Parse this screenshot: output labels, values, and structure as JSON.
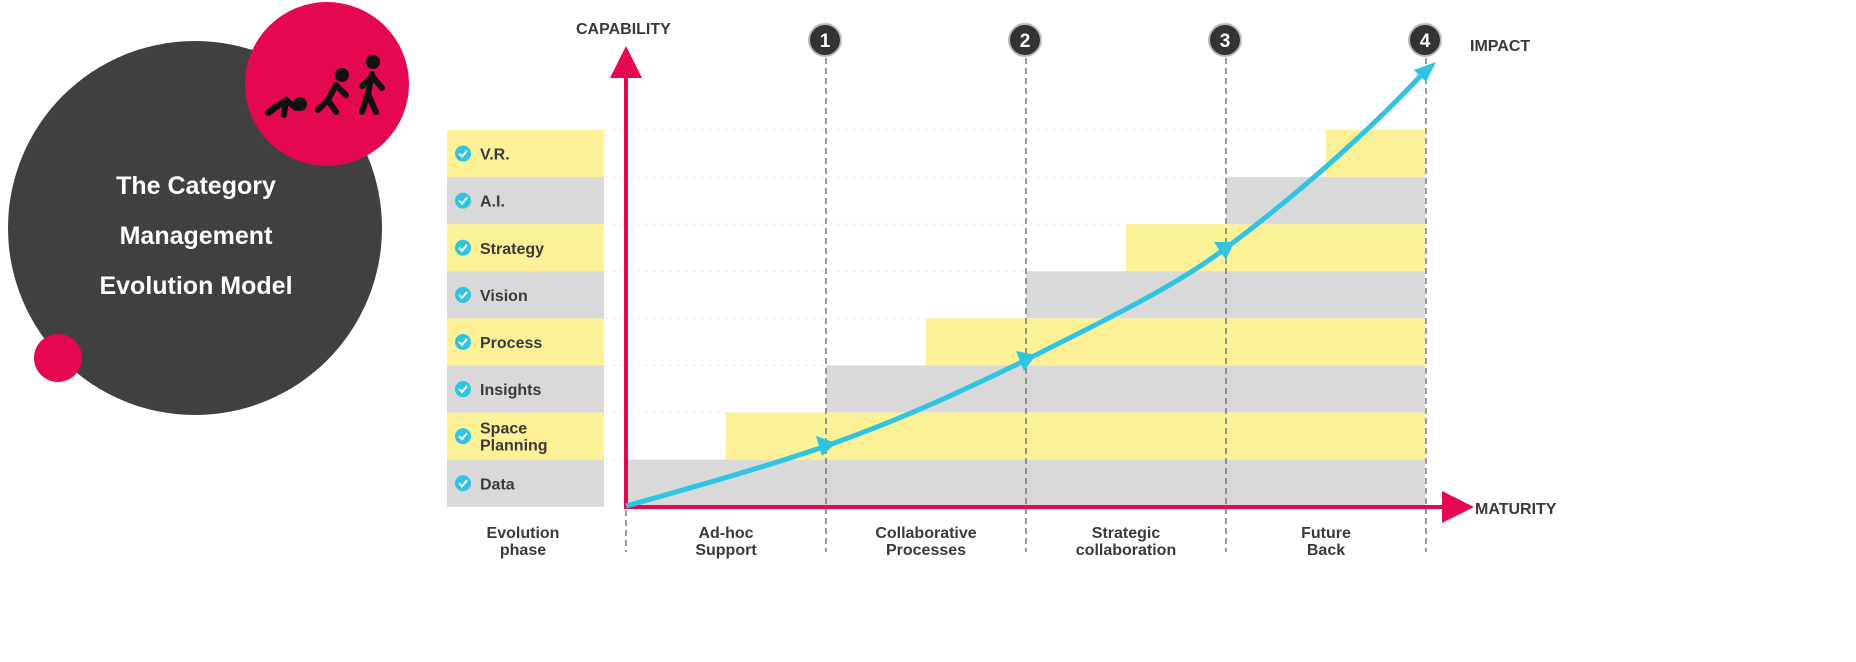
{
  "title_lines": [
    "The Category",
    "Management",
    "Evolution Model"
  ],
  "icons": {
    "evolution": "human-evolution-icon",
    "check": "check-circle-icon"
  },
  "colors": {
    "dark": "#404040",
    "accent": "#e5084f",
    "curve": "#2ec4e2",
    "yellow": "#fdf197",
    "gray": "#d9d9d9",
    "check": "#2ec4e2"
  },
  "axes": {
    "y_label": "CAPABILITY",
    "x_label": "MATURITY",
    "impact_label": "IMPACT"
  },
  "milestones": [
    "1",
    "2",
    "3",
    "4"
  ],
  "capabilities": [
    {
      "label": "V.R.",
      "lines": [
        "V.R."
      ],
      "color": "yellow",
      "start_phase": 3.5
    },
    {
      "label": "A.I.",
      "lines": [
        "A.I."
      ],
      "color": "gray",
      "start_phase": 3
    },
    {
      "label": "Strategy",
      "lines": [
        "Strategy"
      ],
      "color": "yellow",
      "start_phase": 2.5
    },
    {
      "label": "Vision",
      "lines": [
        "Vision"
      ],
      "color": "gray",
      "start_phase": 2
    },
    {
      "label": "Process",
      "lines": [
        "Process"
      ],
      "color": "yellow",
      "start_phase": 1.5
    },
    {
      "label": "Insights",
      "lines": [
        "Insights"
      ],
      "color": "gray",
      "start_phase": 1
    },
    {
      "label": "Space Planning",
      "lines": [
        "Space",
        "Planning"
      ],
      "color": "yellow",
      "start_phase": 0.5
    },
    {
      "label": "Data",
      "lines": [
        "Data"
      ],
      "color": "gray",
      "start_phase": 0
    }
  ],
  "phase_header": [
    "Evolution",
    "phase"
  ],
  "phases": [
    [
      "Ad-hoc",
      "Support"
    ],
    [
      "Collaborative",
      "Processes"
    ],
    [
      "Strategic",
      "collaboration"
    ],
    [
      "Future",
      "Back"
    ]
  ]
}
